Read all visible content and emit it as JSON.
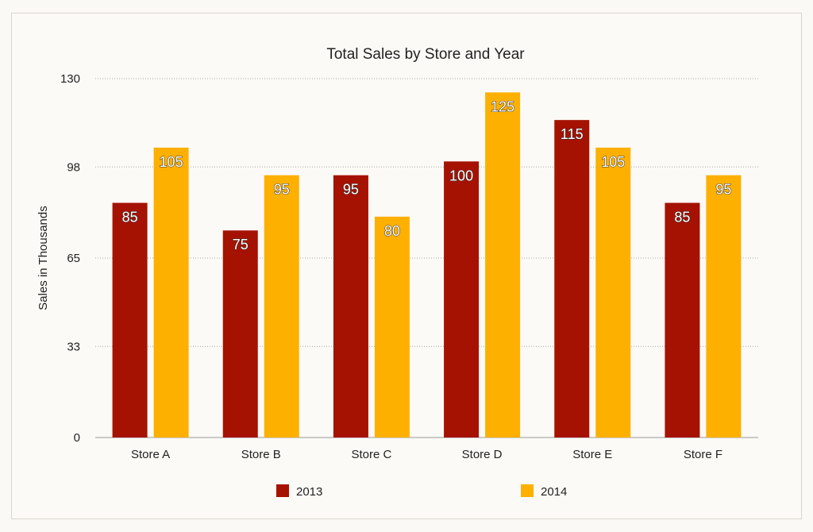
{
  "chart_data": {
    "type": "bar",
    "title": "Total Sales by Store and Year",
    "xlabel": "",
    "ylabel": "Sales in Thousands",
    "categories": [
      "Store A",
      "Store B",
      "Store C",
      "Store D",
      "Store E",
      "Store F"
    ],
    "series": [
      {
        "name": "2013",
        "color": "#a51202",
        "values": [
          85,
          75,
          95,
          100,
          115,
          85
        ]
      },
      {
        "name": "2014",
        "color": "#fdb000",
        "values": [
          105,
          95,
          80,
          125,
          105,
          95
        ]
      }
    ],
    "ylim": [
      0,
      130
    ],
    "yticks": [
      0,
      33,
      65,
      98,
      130
    ],
    "grid": true,
    "legend": "bottom"
  }
}
